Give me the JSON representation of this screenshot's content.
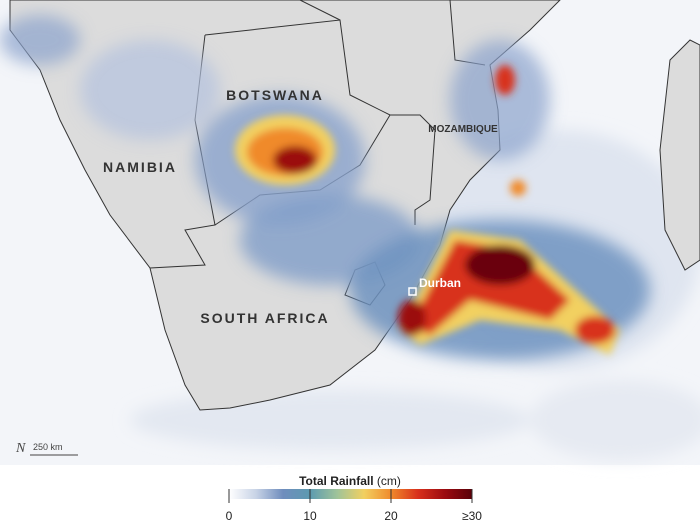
{
  "map": {
    "labels": [
      "BOTSWANA",
      "NAMIBIA",
      "MOZAMBIQUE",
      "SOUTH AFRICA"
    ],
    "city": "Durban",
    "north": "N",
    "scale_bar": "250 km"
  },
  "legend": {
    "title": "Total Rainfall",
    "unit": "(cm)",
    "range": [
      0,
      30
    ],
    "ticks": [
      0,
      10,
      20,
      {
        "value": 30,
        "label": "≥30"
      }
    ],
    "colors": [
      "#ffffff",
      "#c8d3e6",
      "#6f8dbd",
      "#5c9ab0",
      "#9fc39a",
      "#f2d060",
      "#f08a2c",
      "#d8301c",
      "#9b0a10",
      "#5a0008"
    ]
  }
}
